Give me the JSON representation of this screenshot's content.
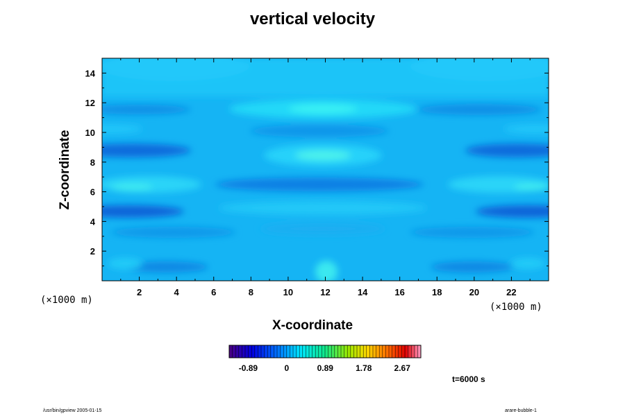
{
  "chart_data": {
    "type": "heatmap",
    "title": "vertical velocity",
    "xlabel": "X-coordinate",
    "ylabel": "Z-coordinate",
    "x_unit": "(×1000 m)",
    "y_unit": "(×1000 m)",
    "xlim": [
      0,
      24
    ],
    "ylim": [
      0,
      15
    ],
    "x_ticks": [
      "2",
      "4",
      "6",
      "8",
      "10",
      "12",
      "14",
      "16",
      "18",
      "20",
      "22"
    ],
    "y_ticks": [
      "2",
      "4",
      "6",
      "8",
      "10",
      "12",
      "14"
    ],
    "colorbar": {
      "min": -1.33,
      "max": 3.1,
      "tick_labels": [
        "-0.89",
        "0",
        "0.89",
        "1.78",
        "2.67"
      ],
      "tick_values": [
        -0.89,
        0,
        0.89,
        1.78,
        2.67
      ],
      "colormap": "rainbow (purple-blue-cyan-green-yellow-red-pink)"
    },
    "field_description": "Horizontal bands of vertical velocity, mostly near 0 (light blue); stronger negative bands near z=4.5 and z=8.8 at domain edges, positive maxima near x=12 at z=8.5 and z=11.5",
    "time": "t=6000 s"
  },
  "footer": {
    "left": "/usr/bin/gpview 2005-01-15",
    "right": "arare-bubble-1"
  }
}
